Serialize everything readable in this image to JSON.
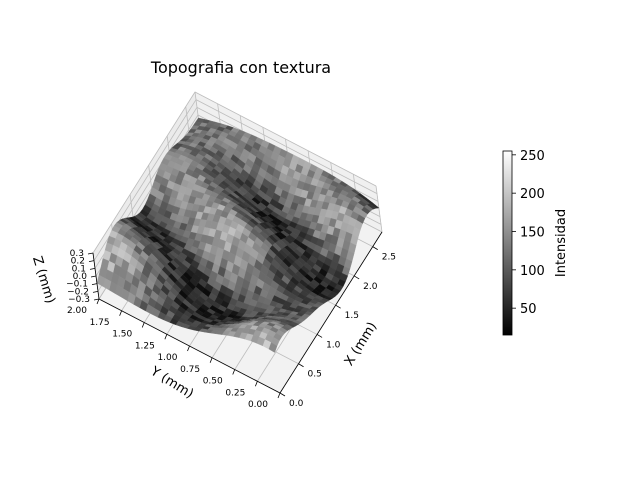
{
  "chart_data": {
    "type": "surface3d",
    "title": "Topografia con textura",
    "x_axis": {
      "label": "X (mm)",
      "range": [
        0,
        2.75
      ],
      "ticks": [
        "0.0",
        "0.5",
        "1.0",
        "1.5",
        "2.0",
        "2.5"
      ]
    },
    "y_axis": {
      "label": "Y (mm)",
      "range": [
        0,
        2.0
      ],
      "ticks": [
        "0.00",
        "0.25",
        "0.50",
        "0.75",
        "1.00",
        "1.25",
        "1.50",
        "1.75",
        "2.00"
      ]
    },
    "z_axis": {
      "label": "Z (mm)",
      "range": [
        -0.3,
        0.3
      ],
      "ticks": [
        "−0.3",
        "−0.2",
        "−0.1",
        "0.0",
        "0.1",
        "0.2",
        "0.3"
      ]
    },
    "colorbar": {
      "label": "Intensidad",
      "range": [
        15,
        255
      ],
      "ticks": [
        "50",
        "100",
        "150",
        "200",
        "250"
      ],
      "colormap": "gray"
    },
    "grid": true,
    "pane_color": "#f2f2f2"
  }
}
